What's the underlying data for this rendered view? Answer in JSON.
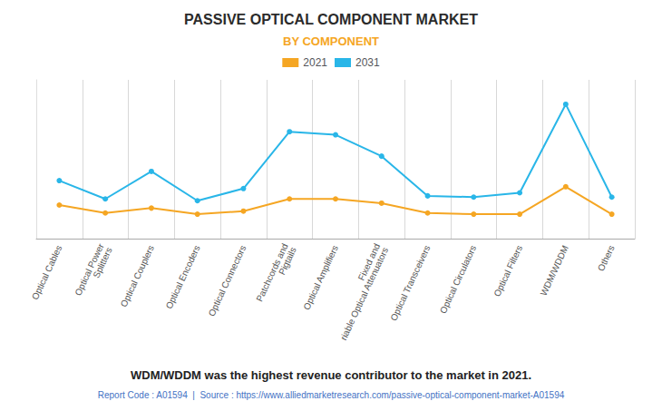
{
  "chart_data": {
    "type": "line",
    "title": "PASSIVE OPTICAL COMPONENT MARKET",
    "subtitle": "BY COMPONENT",
    "categories": [
      "Optical Cables",
      "Optical Power\nSplitters",
      "Optical Couplers",
      "Optical Encoders",
      "Optical Connectors",
      "Patchcords and\nPigtails",
      "Optical Amplifiers",
      "Fixed and\nriable Optical Attenuators",
      "Optical Transceivers",
      "Optical Circulators",
      "Optical Filters",
      "WDM/WDDM",
      "Others"
    ],
    "series": [
      {
        "name": "2021",
        "color": "#F5A623",
        "values": [
          5.5,
          4.2,
          5.0,
          4.0,
          4.5,
          6.5,
          6.5,
          5.8,
          4.2,
          4.0,
          4.0,
          8.5,
          4.0
        ]
      },
      {
        "name": "2031",
        "color": "#29B6E8",
        "values": [
          9.5,
          6.5,
          11.0,
          6.2,
          8.2,
          17.5,
          17.0,
          13.5,
          7.0,
          6.8,
          7.5,
          22.0,
          6.8
        ]
      }
    ],
    "ylim": [
      0,
      26
    ],
    "grid": true,
    "legend": "top",
    "tick_labels": "x",
    "marker": "circle",
    "annotations": [
      "WDM/WDDM was the highest revenue contributor to the market in 2021.",
      "Report Code : A01594  |  Source : https://www.alliedmarketresearch.com/passive-optical-component-market-A01594"
    ]
  }
}
